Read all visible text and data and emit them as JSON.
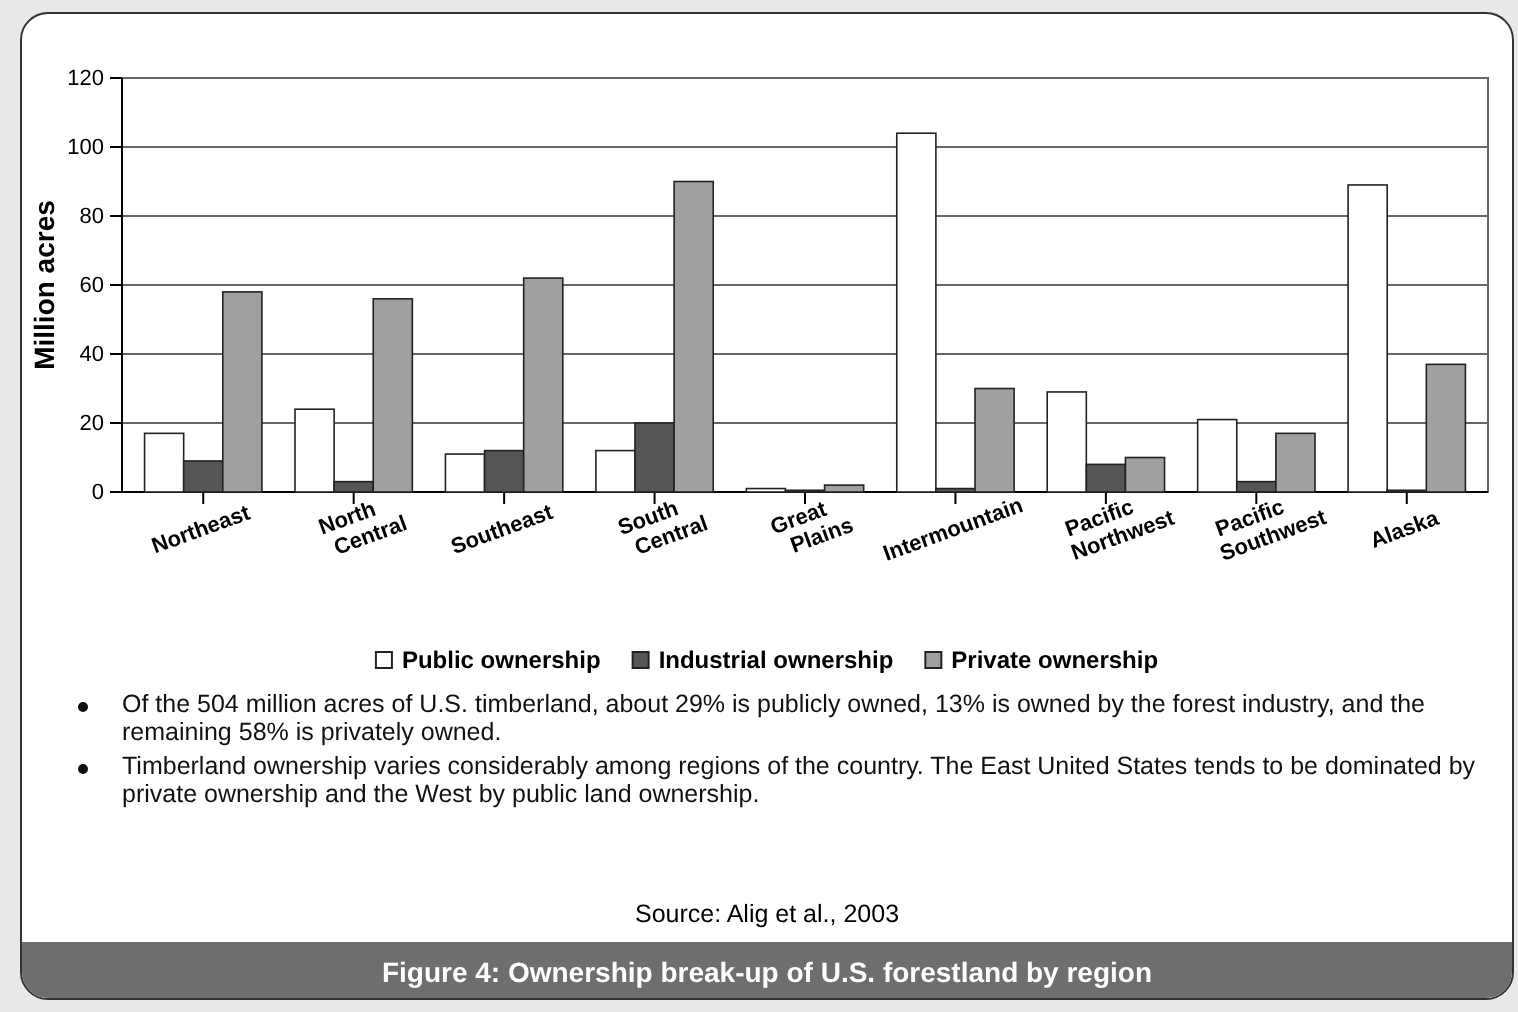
{
  "chart_data": {
    "type": "bar",
    "title": "Figure 4: Ownership break-up of U.S. forestland by region",
    "ylabel": "Million acres",
    "categories": [
      "Northeast",
      "North Central",
      "Southeast",
      "South Central",
      "Great Plains",
      "Intermountain",
      "Pacific Northwest",
      "Pacific Southwest",
      "Alaska"
    ],
    "series": [
      {
        "name": "Public ownership",
        "color": "#ffffff",
        "values": [
          17,
          24,
          11,
          12,
          1,
          104,
          29,
          21,
          89
        ]
      },
      {
        "name": "Industrial ownership",
        "color": "#555555",
        "values": [
          9,
          3,
          12,
          20,
          0.5,
          1,
          8,
          3,
          0.5
        ]
      },
      {
        "name": "Private ownership",
        "color": "#a0a0a0",
        "values": [
          58,
          56,
          62,
          90,
          2,
          30,
          10,
          17,
          37
        ]
      }
    ],
    "ylim": [
      0,
      120
    ],
    "yticks": [
      0,
      20,
      40,
      60,
      80,
      100,
      120
    ],
    "grid": "y",
    "legend": "bottom",
    "annotations": [
      "Of the 504 million acres of U.S. timberland, about 29% is publicly owned, 13% is owned by the forest industry, and the remaining 58% is privately owned.",
      "Timberland ownership varies considerably among regions of the country. The East United States tends to be dominated by private ownership and the West by public land ownership.",
      "Source: Alig et al., 2003"
    ]
  }
}
